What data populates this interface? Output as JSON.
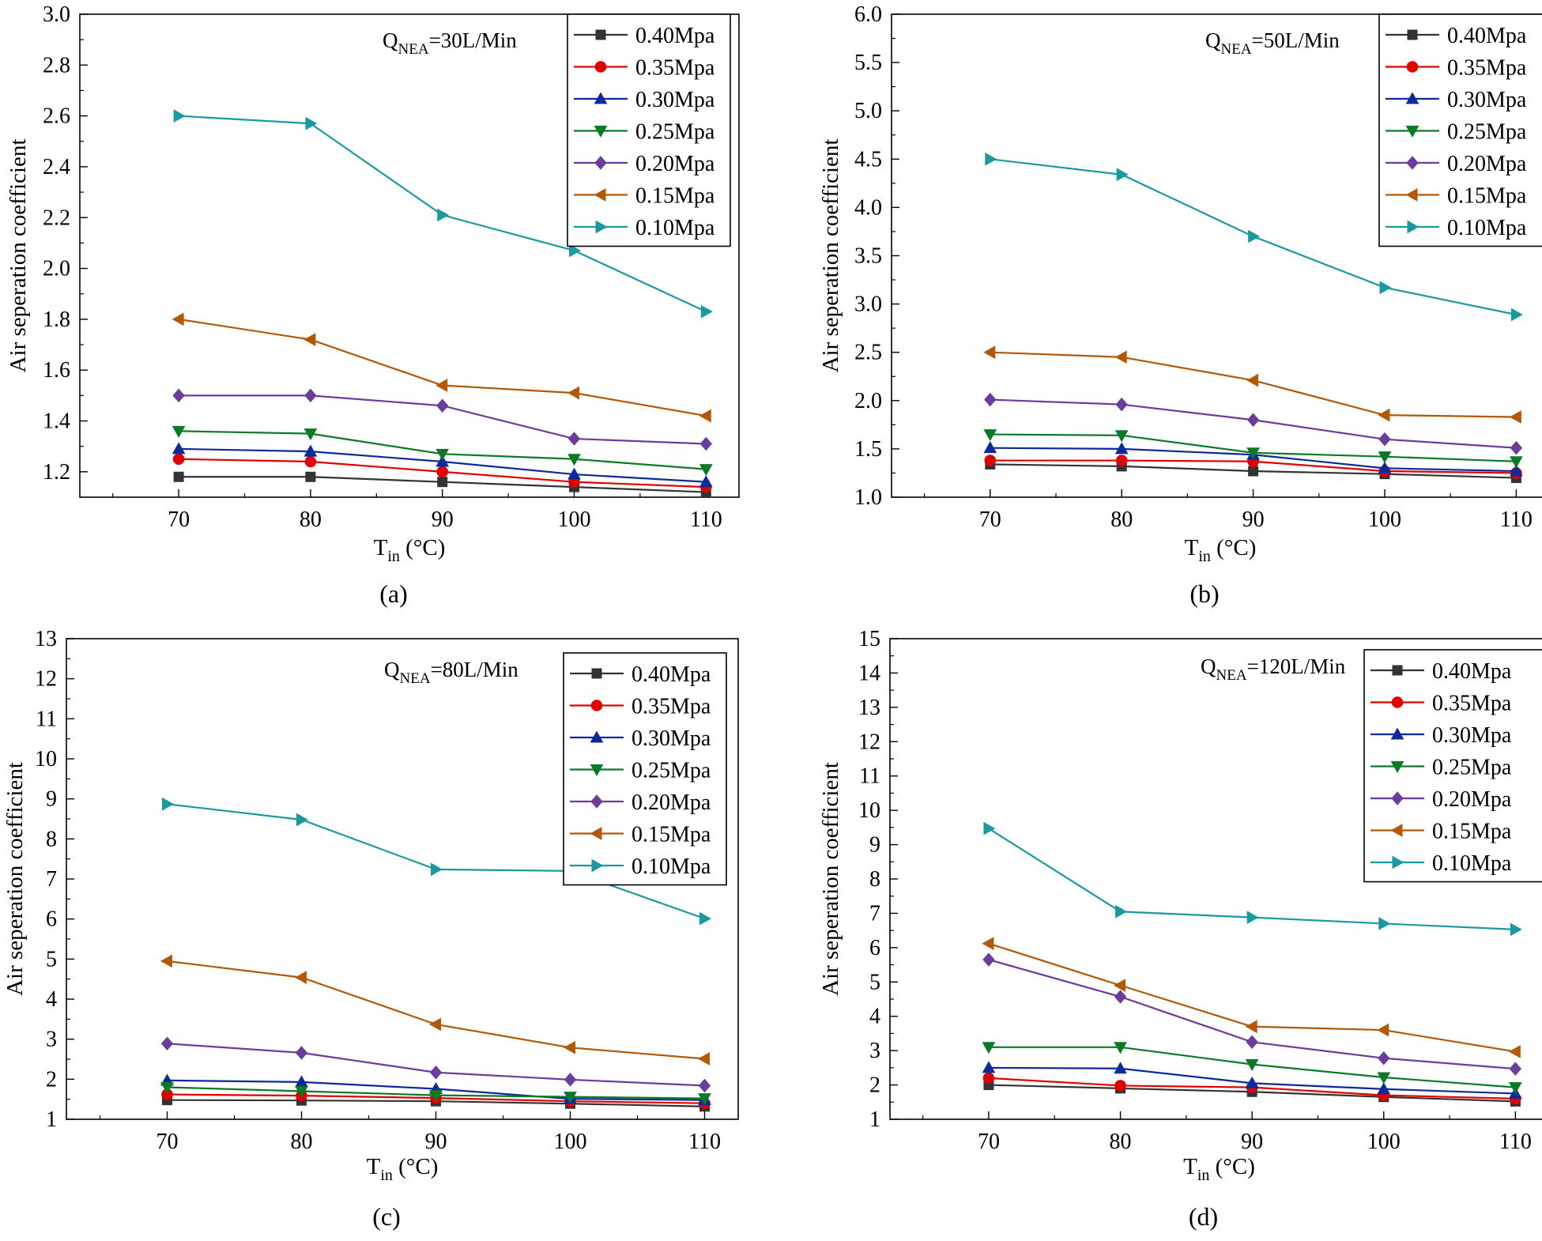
{
  "chart_data": [
    {
      "type": "line",
      "caption": "(a)",
      "annotation": {
        "main": "Q",
        "sub": "NEA",
        "rest": "=30L/Min"
      },
      "xlabel": {
        "main": "T",
        "sub": "in",
        "rest": " (°C)"
      },
      "ylabel": "Air seperation coefficient",
      "x": [
        70,
        80,
        90,
        100,
        110
      ],
      "xlim": [
        62.5,
        112.5
      ],
      "ylim": [
        1.1,
        3.0
      ],
      "yticks": [
        1.2,
        1.4,
        1.6,
        1.8,
        2.0,
        2.2,
        2.4,
        2.6,
        2.8,
        3.0
      ],
      "ydecimals": 1,
      "legend_position": "top-right",
      "series": [
        {
          "name": "0.40Mpa",
          "color": "#333333",
          "marker": "square",
          "values": [
            1.18,
            1.18,
            1.16,
            1.14,
            1.12
          ]
        },
        {
          "name": "0.35Mpa",
          "color": "#e00000",
          "marker": "circle",
          "values": [
            1.25,
            1.24,
            1.2,
            1.16,
            1.14
          ]
        },
        {
          "name": "0.30Mpa",
          "color": "#0d2a9c",
          "marker": "triangle-up",
          "values": [
            1.29,
            1.28,
            1.24,
            1.19,
            1.16
          ]
        },
        {
          "name": "0.25Mpa",
          "color": "#0b7a26",
          "marker": "triangle-down",
          "values": [
            1.36,
            1.35,
            1.27,
            1.25,
            1.21
          ]
        },
        {
          "name": "0.20Mpa",
          "color": "#6a3d9a",
          "marker": "diamond",
          "values": [
            1.5,
            1.5,
            1.46,
            1.33,
            1.31
          ]
        },
        {
          "name": "0.15Mpa",
          "color": "#b35806",
          "marker": "triangle-left",
          "values": [
            1.8,
            1.72,
            1.54,
            1.51,
            1.42
          ]
        },
        {
          "name": "0.10Mpa",
          "color": "#1a9aa0",
          "marker": "triangle-right",
          "values": [
            2.6,
            2.57,
            2.21,
            2.07,
            1.83
          ]
        }
      ]
    },
    {
      "type": "line",
      "caption": "(b)",
      "annotation": {
        "main": "Q",
        "sub": "NEA",
        "rest": "=50L/Min"
      },
      "xlabel": {
        "main": "T",
        "sub": "in",
        "rest": " (°C)"
      },
      "ylabel": "Air seperation coefficient",
      "x": [
        70,
        80,
        90,
        100,
        110
      ],
      "xlim": [
        62.5,
        112.5
      ],
      "ylim": [
        1.0,
        6.0
      ],
      "yticks": [
        1.0,
        1.5,
        2.0,
        2.5,
        3.0,
        3.5,
        4.0,
        4.5,
        5.0,
        5.5,
        6.0
      ],
      "ydecimals": 1,
      "legend_position": "top-right",
      "series": [
        {
          "name": "0.40Mpa",
          "color": "#333333",
          "marker": "square",
          "values": [
            1.34,
            1.32,
            1.27,
            1.24,
            1.2
          ]
        },
        {
          "name": "0.35Mpa",
          "color": "#e00000",
          "marker": "circle",
          "values": [
            1.38,
            1.38,
            1.37,
            1.27,
            1.25
          ]
        },
        {
          "name": "0.30Mpa",
          "color": "#0d2a9c",
          "marker": "triangle-up",
          "values": [
            1.51,
            1.5,
            1.44,
            1.3,
            1.27
          ]
        },
        {
          "name": "0.25Mpa",
          "color": "#0b7a26",
          "marker": "triangle-down",
          "values": [
            1.65,
            1.64,
            1.46,
            1.42,
            1.37
          ]
        },
        {
          "name": "0.20Mpa",
          "color": "#6a3d9a",
          "marker": "diamond",
          "values": [
            2.01,
            1.96,
            1.8,
            1.6,
            1.51
          ]
        },
        {
          "name": "0.15Mpa",
          "color": "#b35806",
          "marker": "triangle-left",
          "values": [
            2.5,
            2.45,
            2.21,
            1.85,
            1.83
          ]
        },
        {
          "name": "0.10Mpa",
          "color": "#1a9aa0",
          "marker": "triangle-right",
          "values": [
            4.5,
            4.34,
            3.7,
            3.17,
            2.89
          ]
        }
      ]
    },
    {
      "type": "line",
      "caption": "(c)",
      "annotation": {
        "main": "Q",
        "sub": "NEA",
        "rest": "=80L/Min"
      },
      "xlabel": {
        "main": "T",
        "sub": "in",
        "rest": " (°C)"
      },
      "ylabel": "Air seperation coefficient",
      "x": [
        70,
        80,
        90,
        100,
        110
      ],
      "xlim": [
        62.5,
        112.5
      ],
      "ylim": [
        1,
        13
      ],
      "yticks": [
        1,
        2,
        3,
        4,
        5,
        6,
        7,
        8,
        9,
        10,
        11,
        12,
        13
      ],
      "ydecimals": 0,
      "legend_position": "top-right",
      "series": [
        {
          "name": "0.40Mpa",
          "color": "#333333",
          "marker": "square",
          "values": [
            1.48,
            1.47,
            1.45,
            1.39,
            1.32
          ]
        },
        {
          "name": "0.35Mpa",
          "color": "#e00000",
          "marker": "circle",
          "values": [
            1.62,
            1.59,
            1.53,
            1.45,
            1.4
          ]
        },
        {
          "name": "0.30Mpa",
          "color": "#0d2a9c",
          "marker": "triangle-up",
          "values": [
            1.97,
            1.93,
            1.76,
            1.51,
            1.48
          ]
        },
        {
          "name": "0.25Mpa",
          "color": "#0b7a26",
          "marker": "triangle-down",
          "values": [
            1.8,
            1.7,
            1.6,
            1.56,
            1.52
          ]
        },
        {
          "name": "0.20Mpa",
          "color": "#6a3d9a",
          "marker": "diamond",
          "values": [
            2.89,
            2.66,
            2.17,
            1.99,
            1.84
          ]
        },
        {
          "name": "0.15Mpa",
          "color": "#b35806",
          "marker": "triangle-left",
          "values": [
            4.95,
            4.54,
            3.37,
            2.79,
            2.51
          ]
        },
        {
          "name": "0.10Mpa",
          "color": "#1a9aa0",
          "marker": "triangle-right",
          "values": [
            8.87,
            8.48,
            7.24,
            7.2,
            6.01
          ]
        }
      ]
    },
    {
      "type": "line",
      "caption": "(d)",
      "annotation": {
        "main": "Q",
        "sub": "NEA",
        "rest": "=120L/Min"
      },
      "xlabel": {
        "main": "T",
        "sub": "in",
        "rest": " (°C)"
      },
      "ylabel": "Air seperation coefficient",
      "x": [
        70,
        80,
        90,
        100,
        110
      ],
      "xlim": [
        62.5,
        112.5
      ],
      "ylim": [
        1,
        15
      ],
      "yticks": [
        1,
        2,
        3,
        4,
        5,
        6,
        7,
        8,
        9,
        10,
        11,
        12,
        13,
        14,
        15
      ],
      "ydecimals": 0,
      "legend_position": "top-right",
      "series": [
        {
          "name": "0.40Mpa",
          "color": "#333333",
          "marker": "square",
          "values": [
            2.0,
            1.9,
            1.8,
            1.65,
            1.52
          ]
        },
        {
          "name": "0.35Mpa",
          "color": "#e00000",
          "marker": "circle",
          "values": [
            2.2,
            1.98,
            1.93,
            1.7,
            1.6
          ]
        },
        {
          "name": "0.30Mpa",
          "color": "#0d2a9c",
          "marker": "triangle-up",
          "values": [
            2.5,
            2.48,
            2.05,
            1.88,
            1.75
          ]
        },
        {
          "name": "0.25Mpa",
          "color": "#0b7a26",
          "marker": "triangle-down",
          "values": [
            3.1,
            3.1,
            2.6,
            2.22,
            1.93
          ]
        },
        {
          "name": "0.20Mpa",
          "color": "#6a3d9a",
          "marker": "diamond",
          "values": [
            5.65,
            4.57,
            3.25,
            2.78,
            2.47
          ]
        },
        {
          "name": "0.15Mpa",
          "color": "#b35806",
          "marker": "triangle-left",
          "values": [
            6.12,
            4.9,
            3.7,
            3.6,
            2.97
          ]
        },
        {
          "name": "0.10Mpa",
          "color": "#1a9aa0",
          "marker": "triangle-right",
          "values": [
            9.47,
            7.05,
            6.88,
            6.7,
            6.53
          ]
        }
      ]
    }
  ]
}
